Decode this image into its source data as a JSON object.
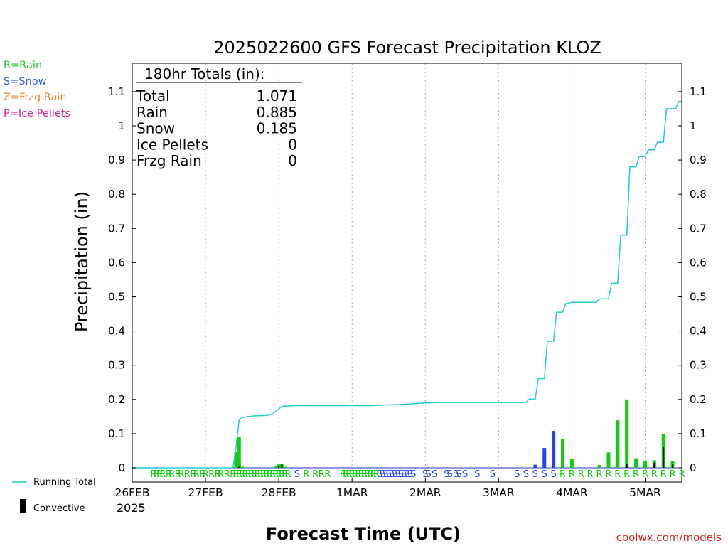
{
  "chart_data": {
    "type": "bar",
    "title": "2025022600 GFS Forecast Precipitation KLOZ",
    "xlabel": "Forecast Time (UTC)",
    "ylabel": "Precipitation (in)",
    "ylim": [
      0,
      1.16
    ],
    "y_ticks": [
      "0",
      "0.1",
      "0.2",
      "0.3",
      "0.4",
      "0.5",
      "0.6",
      "0.7",
      "0.8",
      "0.9",
      "1",
      "1.1"
    ],
    "x_unit": "forecast hour",
    "xlim": [
      0,
      180
    ],
    "x_ticks": [
      {
        "hour": 0,
        "label": "26FEB"
      },
      {
        "hour": 24,
        "label": "27FEB"
      },
      {
        "hour": 48,
        "label": "28FEB"
      },
      {
        "hour": 72,
        "label": "1MAR"
      },
      {
        "hour": 96,
        "label": "2MAR"
      },
      {
        "hour": 120,
        "label": "3MAR"
      },
      {
        "hour": 144,
        "label": "4MAR"
      },
      {
        "hour": 168,
        "label": "5MAR"
      }
    ],
    "x_year_label": "2025",
    "grid": "vertical dotted at day boundaries",
    "legend_top": [
      {
        "text": "R=Rain",
        "color": "#22cc22"
      },
      {
        "text": "S=Snow",
        "color": "#3355ee"
      },
      {
        "text": "Z=Frzg Rain",
        "color": "#ee8833"
      },
      {
        "text": "P=Ice Pellets",
        "color": "#e0209a"
      }
    ],
    "legend_bottom": [
      {
        "text": "Running Total",
        "color": "#22cccc",
        "kind": "line"
      },
      {
        "text": "Convective",
        "color": "#000000",
        "kind": "bar"
      }
    ],
    "totals_box": {
      "heading": "180hr Totals (in):",
      "rows": [
        {
          "label": "Total",
          "value": "1.071"
        },
        {
          "label": "Rain",
          "value": "0.885"
        },
        {
          "label": "Snow",
          "value": "0.185"
        },
        {
          "label": "Ice Pellets",
          "value": "0"
        },
        {
          "label": "Frzg Rain",
          "value": "0"
        }
      ]
    },
    "series": [
      {
        "name": "Running Total",
        "color": "#22cccc",
        "points": [
          [
            0,
            0
          ],
          [
            33,
            0
          ],
          [
            34,
            0.06
          ],
          [
            35,
            0.14
          ],
          [
            36,
            0.147
          ],
          [
            38,
            0.15
          ],
          [
            40,
            0.152
          ],
          [
            44,
            0.153
          ],
          [
            46,
            0.158
          ],
          [
            48,
            0.172
          ],
          [
            49,
            0.18
          ],
          [
            54,
            0.182
          ],
          [
            66,
            0.182
          ],
          [
            78,
            0.182
          ],
          [
            84,
            0.184
          ],
          [
            90,
            0.186
          ],
          [
            96,
            0.19
          ],
          [
            102,
            0.191
          ],
          [
            126,
            0.191
          ],
          [
            129,
            0.191
          ],
          [
            130,
            0.201
          ],
          [
            132,
            0.201
          ],
          [
            133,
            0.261
          ],
          [
            135,
            0.261
          ],
          [
            136,
            0.37
          ],
          [
            138,
            0.37
          ],
          [
            139,
            0.455
          ],
          [
            141,
            0.455
          ],
          [
            142,
            0.48
          ],
          [
            144,
            0.484
          ],
          [
            152,
            0.484
          ],
          [
            153,
            0.494
          ],
          [
            156,
            0.494
          ],
          [
            157,
            0.54
          ],
          [
            159,
            0.54
          ],
          [
            160,
            0.68
          ],
          [
            162,
            0.68
          ],
          [
            163,
            0.88
          ],
          [
            165,
            0.88
          ],
          [
            166,
            0.91
          ],
          [
            168,
            0.91
          ],
          [
            169,
            0.93
          ],
          [
            171,
            0.93
          ],
          [
            172,
            0.952
          ],
          [
            174,
            0.952
          ],
          [
            175,
            1.05
          ],
          [
            178,
            1.05
          ],
          [
            179,
            1.071
          ],
          [
            180,
            1.071
          ]
        ]
      }
    ],
    "bars": [
      {
        "hour": 34,
        "value": 0.046,
        "type": "rain"
      },
      {
        "hour": 35,
        "value": 0.09,
        "type": "rain"
      },
      {
        "hour": 36,
        "value": 0.003,
        "type": "rain"
      },
      {
        "hour": 47,
        "value": 0.004,
        "type": "rain"
      },
      {
        "hour": 48,
        "value": 0.01,
        "type": "rain"
      },
      {
        "hour": 49,
        "value": 0.01,
        "type": "rain"
      },
      {
        "hour": 50,
        "value": 0.003,
        "type": "rain"
      },
      {
        "hour": 132,
        "value": 0.009,
        "type": "snow"
      },
      {
        "hour": 135,
        "value": 0.058,
        "type": "snow"
      },
      {
        "hour": 138,
        "value": 0.108,
        "type": "snow"
      },
      {
        "hour": 141,
        "value": 0.084,
        "type": "rain"
      },
      {
        "hour": 144,
        "value": 0.026,
        "type": "rain"
      },
      {
        "hour": 153,
        "value": 0.008,
        "type": "rain"
      },
      {
        "hour": 156,
        "value": 0.045,
        "type": "rain"
      },
      {
        "hour": 159,
        "value": 0.139,
        "type": "rain"
      },
      {
        "hour": 162,
        "value": 0.2,
        "type": "rain"
      },
      {
        "hour": 165,
        "value": 0.028,
        "type": "rain"
      },
      {
        "hour": 168,
        "value": 0.02,
        "type": "rain"
      },
      {
        "hour": 171,
        "value": 0.022,
        "type": "rain"
      },
      {
        "hour": 174,
        "value": 0.098,
        "type": "rain"
      },
      {
        "hour": 177,
        "value": 0.02,
        "type": "rain"
      }
    ],
    "convective": [
      {
        "hour": 35,
        "value": 0.003
      },
      {
        "hour": 48,
        "value": 0.006
      },
      {
        "hour": 49,
        "value": 0.01
      },
      {
        "hour": 162,
        "value": 0.012
      },
      {
        "hour": 171,
        "value": 0.015
      },
      {
        "hour": 174,
        "value": 0.06
      },
      {
        "hour": 177,
        "value": 0.01
      }
    ],
    "ptype_markers": [
      {
        "hour": 7,
        "type": "R"
      },
      {
        "hour": 8,
        "type": "R"
      },
      {
        "hour": 9,
        "type": "R"
      },
      {
        "hour": 10,
        "type": "R"
      },
      {
        "hour": 12,
        "type": "R"
      },
      {
        "hour": 13,
        "type": "R"
      },
      {
        "hour": 15,
        "type": "R"
      },
      {
        "hour": 16,
        "type": "R"
      },
      {
        "hour": 18,
        "type": "R"
      },
      {
        "hour": 20,
        "type": "R"
      },
      {
        "hour": 21,
        "type": "R"
      },
      {
        "hour": 23,
        "type": "R"
      },
      {
        "hour": 24,
        "type": "R"
      },
      {
        "hour": 26,
        "type": "R"
      },
      {
        "hour": 28,
        "type": "R"
      },
      {
        "hour": 29,
        "type": "R"
      },
      {
        "hour": 31,
        "type": "R"
      },
      {
        "hour": 33,
        "type": "R"
      },
      {
        "hour": 34,
        "type": "R"
      },
      {
        "hour": 35,
        "type": "R"
      },
      {
        "hour": 36,
        "type": "R"
      },
      {
        "hour": 37,
        "type": "R"
      },
      {
        "hour": 38,
        "type": "R"
      },
      {
        "hour": 39,
        "type": "R"
      },
      {
        "hour": 40,
        "type": "R"
      },
      {
        "hour": 41,
        "type": "R"
      },
      {
        "hour": 42,
        "type": "R"
      },
      {
        "hour": 43,
        "type": "R"
      },
      {
        "hour": 44,
        "type": "R"
      },
      {
        "hour": 45,
        "type": "R"
      },
      {
        "hour": 46,
        "type": "R"
      },
      {
        "hour": 47,
        "type": "R"
      },
      {
        "hour": 48,
        "type": "R"
      },
      {
        "hour": 49,
        "type": "R"
      },
      {
        "hour": 50,
        "type": "R"
      },
      {
        "hour": 51,
        "type": "R"
      },
      {
        "hour": 54,
        "type": "S"
      },
      {
        "hour": 57,
        "type": "R"
      },
      {
        "hour": 60,
        "type": "R"
      },
      {
        "hour": 62,
        "type": "R"
      },
      {
        "hour": 64,
        "type": "R"
      },
      {
        "hour": 69,
        "type": "R"
      },
      {
        "hour": 70,
        "type": "R"
      },
      {
        "hour": 71,
        "type": "R"
      },
      {
        "hour": 72,
        "type": "R"
      },
      {
        "hour": 73,
        "type": "R"
      },
      {
        "hour": 74,
        "type": "R"
      },
      {
        "hour": 75,
        "type": "R"
      },
      {
        "hour": 76,
        "type": "R"
      },
      {
        "hour": 77,
        "type": "R"
      },
      {
        "hour": 78,
        "type": "R"
      },
      {
        "hour": 79,
        "type": "R"
      },
      {
        "hour": 80,
        "type": "R"
      },
      {
        "hour": 81,
        "type": "S"
      },
      {
        "hour": 82,
        "type": "S"
      },
      {
        "hour": 83,
        "type": "S"
      },
      {
        "hour": 84,
        "type": "S"
      },
      {
        "hour": 85,
        "type": "S"
      },
      {
        "hour": 86,
        "type": "S"
      },
      {
        "hour": 87,
        "type": "S"
      },
      {
        "hour": 88,
        "type": "S"
      },
      {
        "hour": 89,
        "type": "S"
      },
      {
        "hour": 90,
        "type": "S"
      },
      {
        "hour": 91,
        "type": "S"
      },
      {
        "hour": 92,
        "type": "S"
      },
      {
        "hour": 96,
        "type": "S"
      },
      {
        "hour": 97,
        "type": "S"
      },
      {
        "hour": 99,
        "type": "S"
      },
      {
        "hour": 103,
        "type": "S"
      },
      {
        "hour": 104,
        "type": "S"
      },
      {
        "hour": 106,
        "type": "S"
      },
      {
        "hour": 107,
        "type": "S"
      },
      {
        "hour": 109,
        "type": "S"
      },
      {
        "hour": 113,
        "type": "S"
      },
      {
        "hour": 118,
        "type": "S"
      },
      {
        "hour": 126,
        "type": "S"
      },
      {
        "hour": 129,
        "type": "S"
      },
      {
        "hour": 132,
        "type": "S"
      },
      {
        "hour": 135,
        "type": "S"
      },
      {
        "hour": 138,
        "type": "S"
      },
      {
        "hour": 141,
        "type": "R"
      },
      {
        "hour": 144,
        "type": "R"
      },
      {
        "hour": 147,
        "type": "R"
      },
      {
        "hour": 150,
        "type": "R"
      },
      {
        "hour": 153,
        "type": "R"
      },
      {
        "hour": 156,
        "type": "R"
      },
      {
        "hour": 159,
        "type": "R"
      },
      {
        "hour": 162,
        "type": "R"
      },
      {
        "hour": 165,
        "type": "R"
      },
      {
        "hour": 168,
        "type": "R"
      },
      {
        "hour": 171,
        "type": "R"
      },
      {
        "hour": 174,
        "type": "R"
      },
      {
        "hour": 177,
        "type": "R"
      },
      {
        "hour": 180,
        "type": "R"
      }
    ],
    "colors": {
      "rain": "#11cc11",
      "snow": "#2244ee",
      "convective": "#000000",
      "running_total": "#22cccc",
      "grid": "#aaaaaa",
      "axis": "#000000"
    }
  },
  "footer": {
    "credit": "coolwx.com/models",
    "credit_color": "#dd2222"
  }
}
